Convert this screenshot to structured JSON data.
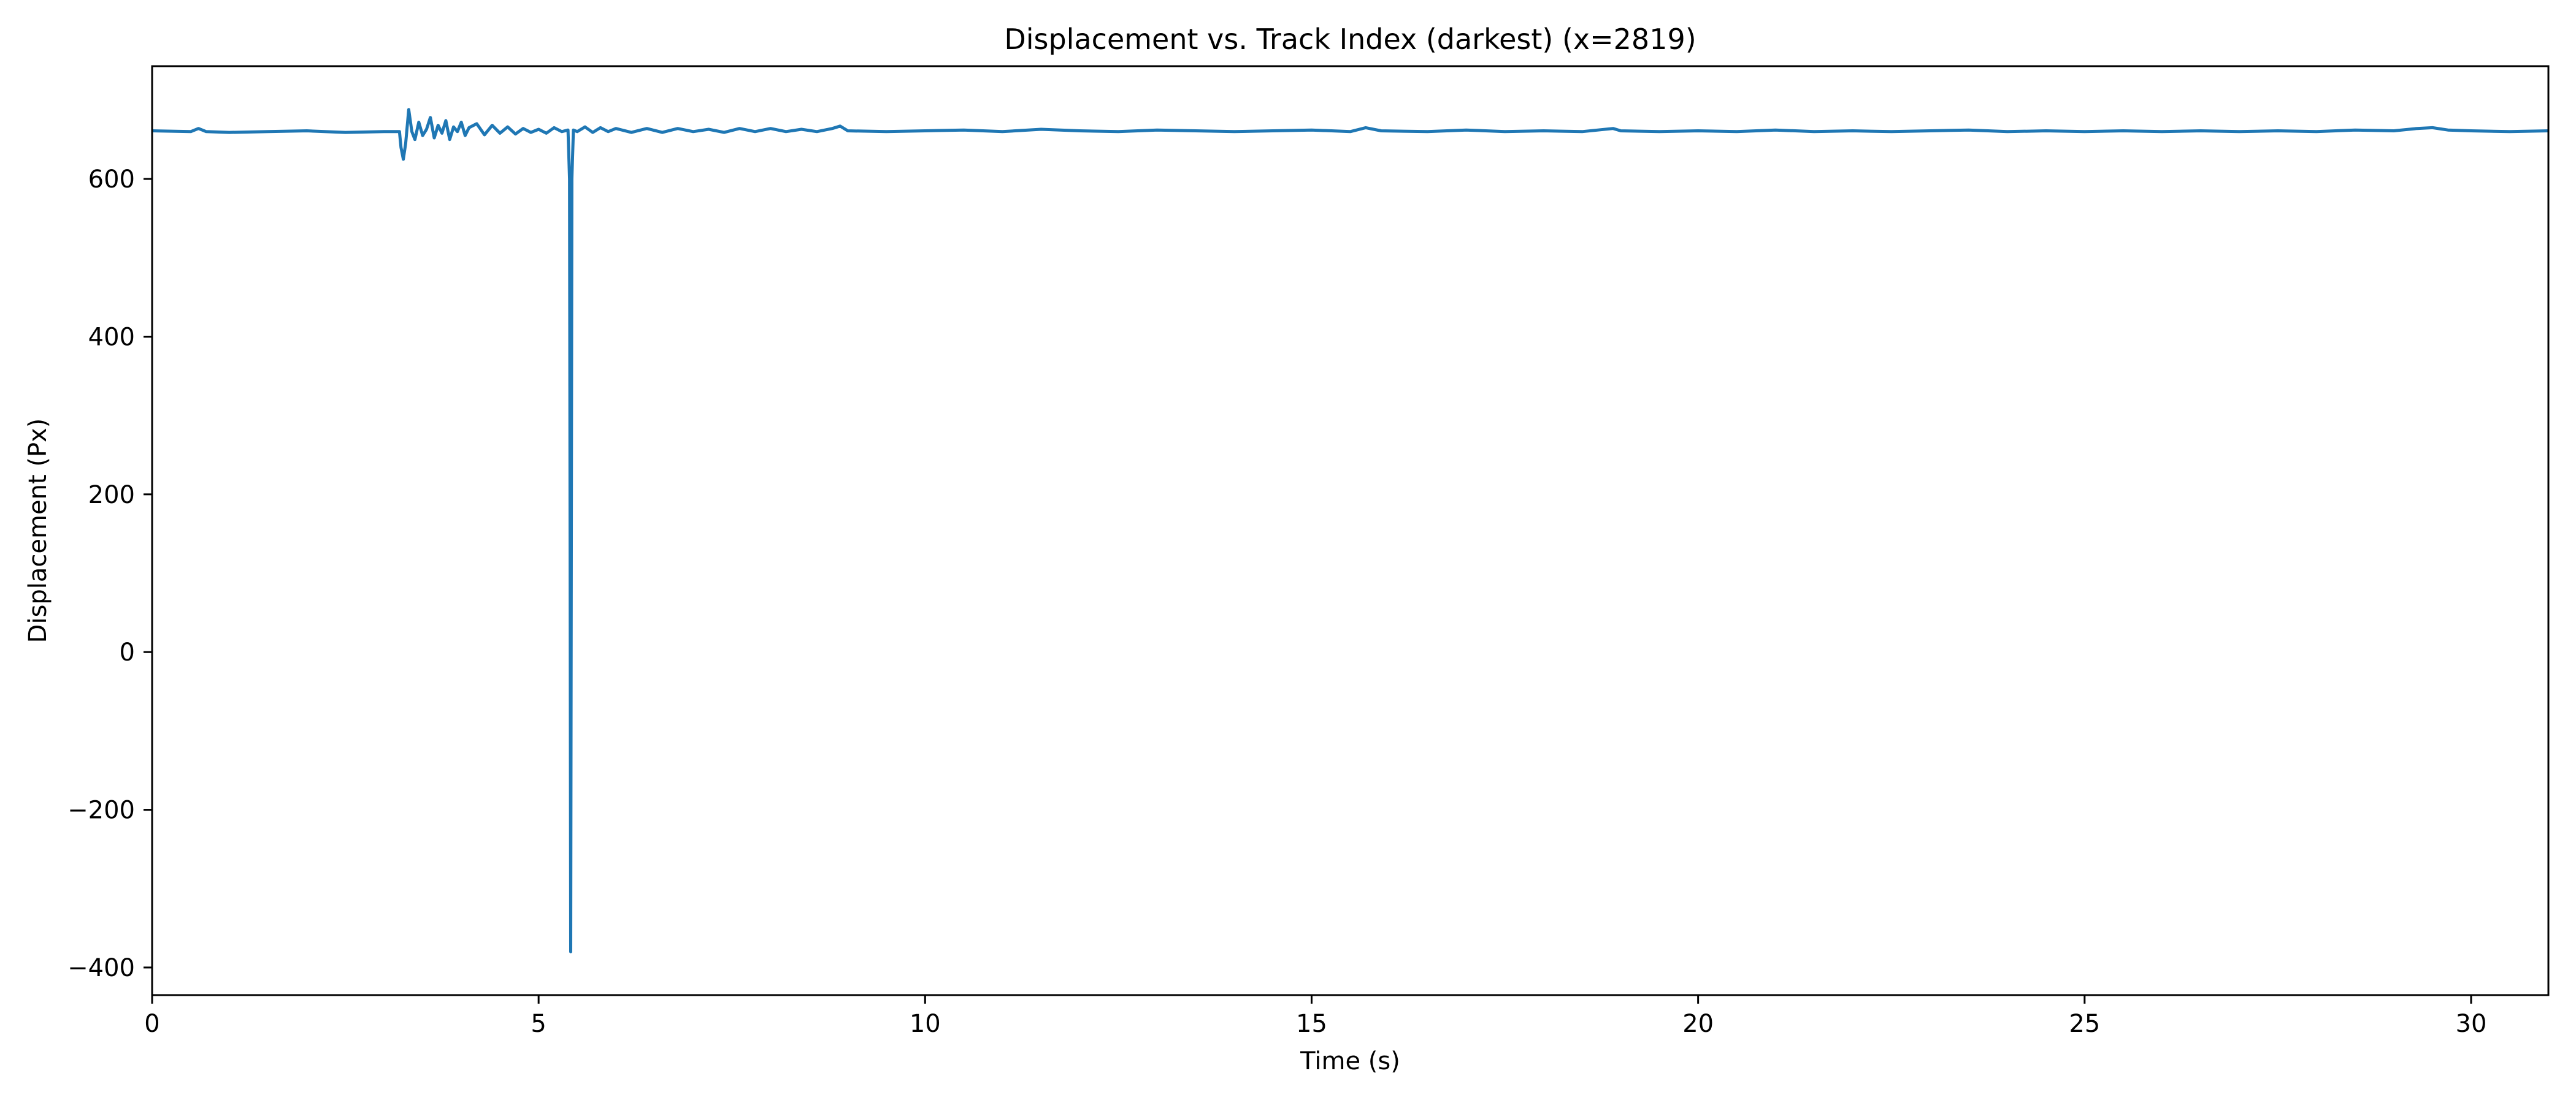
{
  "chart_data": {
    "type": "line",
    "title": "Displacement vs. Track Index (darkest) (x=2819)",
    "xlabel": "Time (s)",
    "ylabel": "Displacement (Px)",
    "xlim": [
      0,
      31
    ],
    "ylim": [
      -435,
      743
    ],
    "grid": false,
    "legend": "none",
    "x_ticks": [
      0,
      5,
      10,
      15,
      20,
      25,
      30
    ],
    "x_tick_labels": [
      "0",
      "5",
      "10",
      "15",
      "20",
      "25",
      "30"
    ],
    "y_ticks": [
      -400,
      -200,
      0,
      200,
      400,
      600
    ],
    "y_tick_labels": [
      "−400",
      "−200",
      "0",
      "200",
      "400",
      "600"
    ],
    "series": [
      {
        "color": "#1f77b4",
        "baseline": 660,
        "points": [
          [
            0,
            661
          ],
          [
            0.5,
            660
          ],
          [
            0.6,
            664
          ],
          [
            0.7,
            660
          ],
          [
            1.0,
            659
          ],
          [
            1.5,
            660
          ],
          [
            2.0,
            661
          ],
          [
            2.5,
            659
          ],
          [
            3.0,
            660
          ],
          [
            3.2,
            660
          ],
          [
            3.22,
            640
          ],
          [
            3.25,
            625
          ],
          [
            3.28,
            645
          ],
          [
            3.32,
            688
          ],
          [
            3.36,
            660
          ],
          [
            3.4,
            650
          ],
          [
            3.45,
            672
          ],
          [
            3.5,
            655
          ],
          [
            3.55,
            663
          ],
          [
            3.6,
            678
          ],
          [
            3.65,
            652
          ],
          [
            3.7,
            668
          ],
          [
            3.75,
            658
          ],
          [
            3.8,
            674
          ],
          [
            3.85,
            650
          ],
          [
            3.9,
            666
          ],
          [
            3.95,
            660
          ],
          [
            4.0,
            672
          ],
          [
            4.05,
            655
          ],
          [
            4.1,
            665
          ],
          [
            4.2,
            670
          ],
          [
            4.3,
            656
          ],
          [
            4.4,
            668
          ],
          [
            4.5,
            658
          ],
          [
            4.6,
            666
          ],
          [
            4.7,
            657
          ],
          [
            4.8,
            664
          ],
          [
            4.9,
            659
          ],
          [
            5.0,
            663
          ],
          [
            5.1,
            658
          ],
          [
            5.2,
            665
          ],
          [
            5.3,
            660
          ],
          [
            5.38,
            662
          ],
          [
            5.4,
            600
          ],
          [
            5.415,
            -380
          ],
          [
            5.43,
            600
          ],
          [
            5.45,
            662
          ],
          [
            5.5,
            660
          ],
          [
            5.6,
            666
          ],
          [
            5.7,
            659
          ],
          [
            5.8,
            665
          ],
          [
            5.9,
            660
          ],
          [
            6.0,
            664
          ],
          [
            6.2,
            659
          ],
          [
            6.4,
            664
          ],
          [
            6.6,
            659
          ],
          [
            6.8,
            664
          ],
          [
            7.0,
            660
          ],
          [
            7.2,
            663
          ],
          [
            7.4,
            659
          ],
          [
            7.6,
            664
          ],
          [
            7.8,
            660
          ],
          [
            8.0,
            664
          ],
          [
            8.2,
            660
          ],
          [
            8.4,
            663
          ],
          [
            8.6,
            660
          ],
          [
            8.8,
            664
          ],
          [
            8.9,
            667
          ],
          [
            9.0,
            661
          ],
          [
            9.5,
            660
          ],
          [
            10.0,
            661
          ],
          [
            10.5,
            662
          ],
          [
            11.0,
            660
          ],
          [
            11.5,
            663
          ],
          [
            12.0,
            661
          ],
          [
            12.5,
            660
          ],
          [
            13.0,
            662
          ],
          [
            13.5,
            661
          ],
          [
            14.0,
            660
          ],
          [
            14.5,
            661
          ],
          [
            15.0,
            662
          ],
          [
            15.5,
            660
          ],
          [
            15.7,
            665
          ],
          [
            15.9,
            661
          ],
          [
            16.5,
            660
          ],
          [
            17.0,
            662
          ],
          [
            17.5,
            660
          ],
          [
            18.0,
            661
          ],
          [
            18.5,
            660
          ],
          [
            18.9,
            664
          ],
          [
            19.0,
            661
          ],
          [
            19.5,
            660
          ],
          [
            20.0,
            661
          ],
          [
            20.5,
            660
          ],
          [
            21.0,
            662
          ],
          [
            21.5,
            660
          ],
          [
            22.0,
            661
          ],
          [
            22.5,
            660
          ],
          [
            23.0,
            661
          ],
          [
            23.5,
            662
          ],
          [
            24.0,
            660
          ],
          [
            24.5,
            661
          ],
          [
            25.0,
            660
          ],
          [
            25.5,
            661
          ],
          [
            26.0,
            660
          ],
          [
            26.5,
            661
          ],
          [
            27.0,
            660
          ],
          [
            27.5,
            661
          ],
          [
            28.0,
            660
          ],
          [
            28.5,
            662
          ],
          [
            29.0,
            661
          ],
          [
            29.3,
            664
          ],
          [
            29.5,
            665
          ],
          [
            29.7,
            662
          ],
          [
            30.0,
            661
          ],
          [
            30.5,
            660
          ],
          [
            31.0,
            661
          ]
        ]
      }
    ]
  }
}
